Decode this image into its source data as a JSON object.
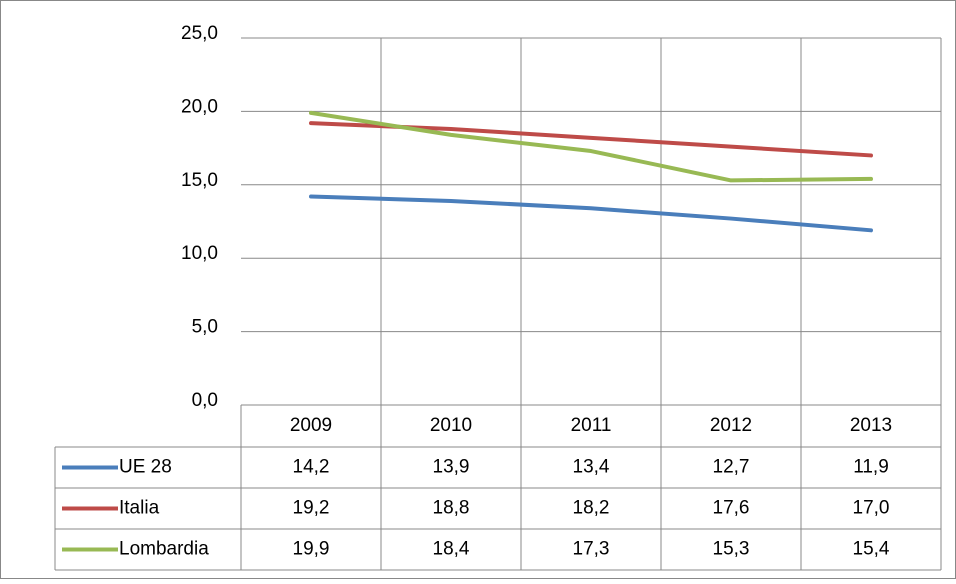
{
  "chart_data": {
    "type": "line",
    "categories": [
      "2009",
      "2010",
      "2011",
      "2012",
      "2013"
    ],
    "series": [
      {
        "name": "UE 28",
        "color": "#4a7ebb",
        "values": [
          14.2,
          13.9,
          13.4,
          12.7,
          11.9
        ],
        "value_labels": [
          "14,2",
          "13,9",
          "13,4",
          "12,7",
          "11,9"
        ]
      },
      {
        "name": "Italia",
        "color": "#be4b48",
        "values": [
          19.2,
          18.8,
          18.2,
          17.6,
          17.0
        ],
        "value_labels": [
          "19,2",
          "18,8",
          "18,2",
          "17,6",
          "17,0"
        ]
      },
      {
        "name": "Lombardia",
        "color": "#98b954",
        "values": [
          19.9,
          18.4,
          17.3,
          15.3,
          15.4
        ],
        "value_labels": [
          "19,9",
          "18,4",
          "17,3",
          "15,3",
          "15,4"
        ]
      }
    ],
    "ylim": [
      0,
      25
    ],
    "yticks": [
      {
        "value": 0,
        "label": "0,0"
      },
      {
        "value": 5,
        "label": "5,0"
      },
      {
        "value": 10,
        "label": "10,0"
      },
      {
        "value": 15,
        "label": "15,0"
      },
      {
        "value": 20,
        "label": "20,0"
      },
      {
        "value": 25,
        "label": "25,0"
      }
    ],
    "grid": true
  }
}
